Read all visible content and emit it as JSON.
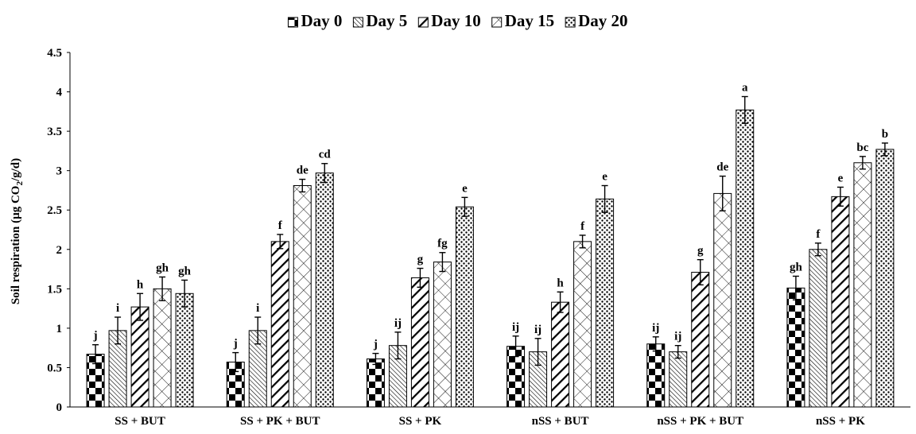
{
  "chart_data": {
    "type": "bar",
    "ylabel": "Soil respiration (µg CO2/g/d)",
    "ylabel_parts": [
      "Soil respiration (µg CO",
      "2",
      "/g/d)"
    ],
    "ylim": [
      0,
      4.5
    ],
    "yticks": [
      "0",
      "0.5",
      "1",
      "1.5",
      "2",
      "2.5",
      "3",
      "3.5",
      "4",
      "4.5"
    ],
    "grid": false,
    "legend_position": "top",
    "categories": [
      "SS + BUT",
      "SS + PK + BUT",
      "SS  + PK",
      "nSS + BUT",
      "nSS + PK + BUT",
      "nSS  + PK"
    ],
    "series": [
      {
        "name": "Day 0",
        "pattern": "checker",
        "values": [
          0.67,
          0.57,
          0.61,
          0.77,
          0.8,
          1.51
        ],
        "errors": [
          0.12,
          0.12,
          0.07,
          0.13,
          0.09,
          0.15
        ],
        "letters": [
          "j",
          "j",
          "j",
          "ij",
          "ij",
          "gh"
        ]
      },
      {
        "name": "Day 5",
        "pattern": "thin-diagonal",
        "values": [
          0.97,
          0.97,
          0.78,
          0.7,
          0.7,
          2.0
        ],
        "errors": [
          0.17,
          0.17,
          0.17,
          0.17,
          0.08,
          0.08
        ],
        "letters": [
          "i",
          "i",
          "ij",
          "ij",
          "ij",
          "f"
        ]
      },
      {
        "name": "Day 10",
        "pattern": "thick-diagonal",
        "values": [
          1.27,
          2.1,
          1.64,
          1.33,
          1.71,
          2.67
        ],
        "errors": [
          0.17,
          0.09,
          0.12,
          0.13,
          0.16,
          0.12
        ],
        "letters": [
          "h",
          "f",
          "g",
          "h",
          "g",
          "e"
        ]
      },
      {
        "name": "Day 15",
        "pattern": "crosshatch",
        "values": [
          1.5,
          2.81,
          1.84,
          2.1,
          2.71,
          3.1
        ],
        "errors": [
          0.15,
          0.08,
          0.12,
          0.08,
          0.22,
          0.08
        ],
        "letters": [
          "gh",
          "de",
          "fg",
          "f",
          "de",
          "bc"
        ]
      },
      {
        "name": "Day 20",
        "pattern": "dots",
        "values": [
          1.44,
          2.97,
          2.54,
          2.64,
          3.77,
          3.27
        ],
        "errors": [
          0.17,
          0.12,
          0.12,
          0.17,
          0.17,
          0.08
        ],
        "letters": [
          "gh",
          "cd",
          "e",
          "e",
          "a",
          "b"
        ]
      }
    ]
  }
}
